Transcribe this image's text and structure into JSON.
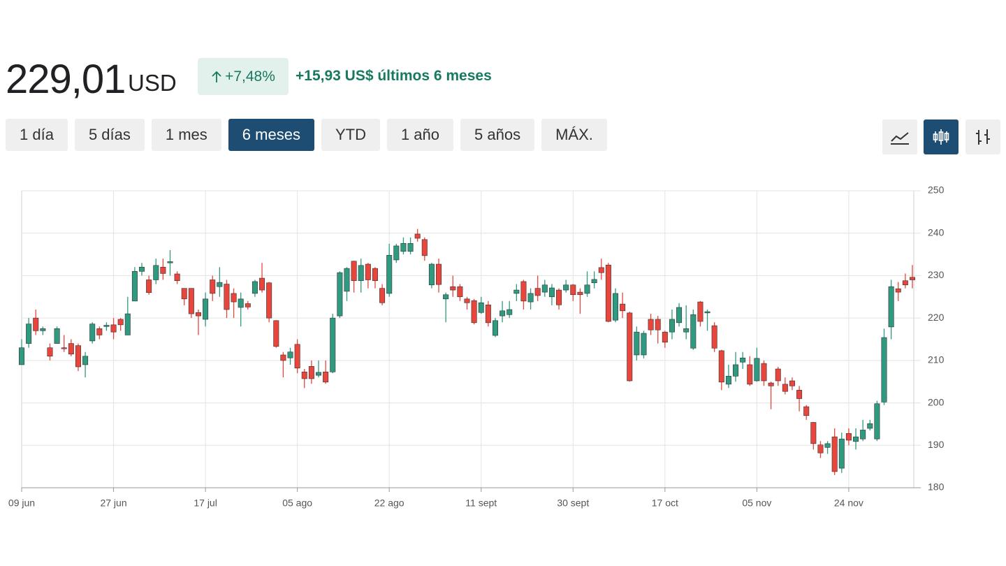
{
  "header": {
    "price": "229,01",
    "currency": "USD",
    "change_pct": "+7,48%",
    "change_text": "+15,93 US$ últimos 6 meses"
  },
  "ranges": [
    "1 día",
    "5 días",
    "1 mes",
    "6 meses",
    "YTD",
    "1 año",
    "5 años",
    "MÁX."
  ],
  "selected_range": 3,
  "chart_data": {
    "type": "candlestick",
    "categories": [
      "09 jun",
      null,
      null,
      null,
      null,
      null,
      null,
      null,
      null,
      null,
      null,
      null,
      null,
      "27 jun",
      null,
      null,
      null,
      null,
      null,
      null,
      null,
      null,
      null,
      null,
      null,
      null,
      "17 jul",
      null,
      null,
      null,
      null,
      null,
      null,
      null,
      null,
      null,
      null,
      null,
      null,
      "05 ago",
      null,
      null,
      null,
      null,
      null,
      null,
      null,
      null,
      null,
      null,
      null,
      null,
      "22 ago",
      null,
      null,
      null,
      null,
      null,
      null,
      null,
      null,
      null,
      null,
      null,
      null,
      "11 sept",
      null,
      null,
      null,
      null,
      null,
      null,
      null,
      null,
      null,
      null,
      null,
      null,
      "30 sept",
      null,
      null,
      null,
      null,
      null,
      null,
      null,
      null,
      null,
      null,
      null,
      null,
      "17 oct",
      null,
      null,
      null,
      null,
      null,
      null,
      null,
      null,
      null,
      null,
      null,
      null,
      "05 nov",
      null,
      null,
      null,
      null,
      null,
      null,
      null,
      null,
      null,
      null,
      null,
      null,
      "24 nov",
      null,
      null,
      null,
      null,
      null,
      null,
      null,
      null,
      null
    ],
    "open": [
      209,
      214,
      220,
      217,
      213,
      214,
      213,
      214,
      213.5,
      209,
      214.6,
      217.5,
      218,
      218.4,
      219.7,
      216,
      224,
      231,
      229,
      229,
      232,
      233,
      230.4,
      227,
      227,
      221.3,
      219.7,
      229,
      227.4,
      228,
      225.8,
      222.5,
      223.4,
      225.8,
      229.4,
      228.3,
      219.4,
      211.3,
      210.6,
      213.8,
      207.3,
      208.6,
      206.5,
      207.3,
      207.3,
      220.5,
      226.3,
      233.4,
      228.8,
      232.7,
      231.7,
      227,
      225.8,
      233.7,
      235.7,
      235.7,
      239.8,
      238.5,
      227.8,
      232.7,
      224.5,
      227.4,
      227.4,
      224.5,
      224.1,
      221.3,
      223.1,
      215.9,
      220.5,
      220.8,
      225.8,
      228.6,
      223.8,
      227,
      226.1,
      225,
      226.6,
      226.6,
      227.8,
      226.1,
      225.8,
      228.3,
      231.9,
      232.5,
      219.5,
      223.3,
      221.2,
      211.3,
      211.3,
      219.7,
      219.7,
      216.7,
      216.7,
      218.9,
      216.7,
      212.9,
      223.8,
      221.2,
      218.2,
      212.3,
      204.4,
      206.3,
      209.6,
      209,
      205.2,
      209.3,
      204.7,
      208,
      204.4,
      205.2,
      203,
      199.1,
      195.4,
      190.1,
      189.5,
      192,
      184.6,
      192.8,
      190.9,
      191.5,
      194,
      191.5,
      200.2,
      217.9,
      226.9,
      228.8,
      229.6
    ],
    "high": [
      215,
      220,
      222,
      218,
      214,
      218,
      216,
      215,
      214,
      212,
      219,
      218,
      219,
      220,
      220,
      225,
      232,
      233,
      230,
      234,
      234,
      236,
      231,
      227,
      227,
      222,
      226,
      230,
      232,
      229,
      227,
      226,
      224,
      229,
      233,
      228.5,
      219.5,
      212,
      213,
      215,
      208,
      210,
      210,
      210,
      221,
      231,
      232,
      233.5,
      234,
      233,
      232,
      228,
      237.5,
      237.5,
      239,
      239,
      241,
      239,
      233,
      234,
      226,
      230,
      228,
      225,
      224.5,
      225,
      224,
      220,
      224,
      224,
      228,
      229,
      227,
      230,
      229,
      228,
      227,
      229,
      228,
      227,
      231,
      231,
      234,
      233,
      227,
      226,
      221.5,
      218,
      217,
      221,
      220.5,
      217,
      222,
      223.5,
      223,
      222,
      224,
      222,
      219,
      212.5,
      209,
      212,
      212,
      211,
      213,
      210,
      205,
      208.5,
      206,
      206,
      204,
      199.5,
      195.5,
      191,
      191,
      194,
      193,
      194,
      194,
      196,
      196,
      200.5,
      217.5,
      229,
      228.5,
      230.5,
      232.5
    ],
    "low": [
      209,
      213,
      216,
      216,
      210,
      214,
      212,
      211,
      207.5,
      206,
      214,
      215,
      217,
      215,
      217,
      216,
      224,
      230,
      225.5,
      228,
      229,
      230,
      228,
      223,
      220,
      216,
      218,
      224,
      225,
      220,
      220,
      218,
      222,
      225,
      226,
      219,
      213,
      206,
      209,
      207,
      203.5,
      204.5,
      206,
      204.5,
      207,
      220,
      224,
      226,
      226,
      227,
      227,
      223,
      225,
      233,
      235,
      235,
      238,
      233.5,
      227,
      226,
      219,
      225,
      224,
      222,
      218.5,
      221,
      218,
      215.5,
      219,
      220,
      224,
      222,
      222,
      224,
      225,
      223,
      222,
      226,
      224,
      221,
      225,
      227,
      229,
      219,
      219,
      220,
      205,
      210,
      210.5,
      216,
      214,
      213,
      215,
      218,
      215,
      212.5,
      218,
      217,
      212,
      203,
      203.5,
      205,
      208,
      204,
      205,
      204,
      198.5,
      204,
      202,
      203,
      198,
      196,
      189,
      187,
      188,
      183,
      183.5,
      190,
      189,
      191,
      193.5,
      191,
      199.5,
      215,
      224,
      227,
      227
    ],
    "close": [
      213,
      218.6,
      217,
      217.5,
      211,
      217.5,
      212.8,
      211.5,
      208.5,
      211,
      218.6,
      216,
      218.3,
      216.7,
      218.4,
      221,
      231,
      232,
      226,
      232.4,
      230.5,
      233.3,
      228.8,
      224.5,
      221,
      220.5,
      224.5,
      225.8,
      228.4,
      222,
      223.8,
      224.5,
      222.6,
      228.6,
      226.6,
      220,
      213.3,
      210,
      212,
      208.2,
      205.7,
      205.7,
      207.2,
      204.9,
      220,
      230.7,
      231.7,
      228.8,
      232.4,
      229,
      228.8,
      223.6,
      234.8,
      237,
      237.6,
      237.6,
      238.8,
      234.7,
      232.7,
      227.9,
      225.5,
      226.6,
      225,
      223.6,
      218.9,
      223.6,
      218.9,
      219.4,
      221.7,
      222,
      226.6,
      224,
      225.8,
      225.3,
      227.8,
      227.1,
      223.1,
      227.8,
      225.5,
      225.5,
      227.8,
      229.1,
      230.7,
      219.2,
      225.8,
      221.7,
      205.2,
      216.7,
      216.4,
      217.2,
      217.2,
      214.3,
      219.7,
      222.5,
      217.5,
      220.8,
      219.2,
      221.5,
      212.9,
      204.9,
      206.3,
      209,
      210.6,
      204.4,
      210.5,
      205.2,
      204,
      205.2,
      202.7,
      204,
      201,
      197,
      190.4,
      188.2,
      190.4,
      183.8,
      191.5,
      191.2,
      192,
      193.6,
      195.1,
      199.8,
      215.4,
      227.4,
      226.1,
      227.8,
      229
    ],
    "up_color": "#2f9a7f",
    "down_color": "#e8453c",
    "ylim": [
      180,
      250
    ],
    "yticks": [
      180,
      190,
      200,
      210,
      220,
      230,
      240,
      250
    ],
    "grid": true
  }
}
